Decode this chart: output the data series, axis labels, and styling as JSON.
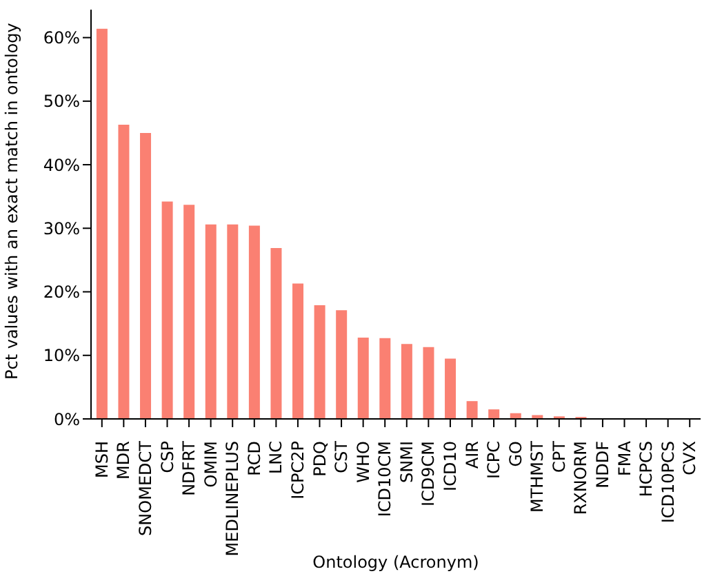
{
  "chart_data": {
    "type": "bar",
    "xlabel": "Ontology (Acronym)",
    "ylabel": "Pct values with an exact match in ontology",
    "categories": [
      "MSH",
      "MDR",
      "SNOMEDCT",
      "CSP",
      "NDFRT",
      "OMIM",
      "MEDLINEPLUS",
      "RCD",
      "LNC",
      "ICPC2P",
      "PDQ",
      "CST",
      "WHO",
      "ICD10CM",
      "SNMI",
      "ICD9CM",
      "ICD10",
      "AIR",
      "ICPC",
      "GO",
      "MTHMST",
      "CPT",
      "RXNORM",
      "NDDF",
      "FMA",
      "HCPCS",
      "ICD10PCS",
      "CVX"
    ],
    "values": [
      61.4,
      46.3,
      45.0,
      34.2,
      33.7,
      30.6,
      30.6,
      30.4,
      26.9,
      21.3,
      17.9,
      17.1,
      12.8,
      12.7,
      11.8,
      11.3,
      9.5,
      2.8,
      1.5,
      0.9,
      0.6,
      0.4,
      0.3,
      0,
      0,
      0,
      0,
      0
    ],
    "color": "#fa8072",
    "ylim": [
      0,
      64.4
    ],
    "yticks": [
      {
        "value": 0,
        "label": "0%"
      },
      {
        "value": 10,
        "label": "10%"
      },
      {
        "value": 20,
        "label": "20%"
      },
      {
        "value": 30,
        "label": "30%"
      },
      {
        "value": 40,
        "label": "40%"
      },
      {
        "value": 50,
        "label": "50%"
      },
      {
        "value": 60,
        "label": "60%"
      }
    ],
    "grid": false,
    "legend": false
  }
}
